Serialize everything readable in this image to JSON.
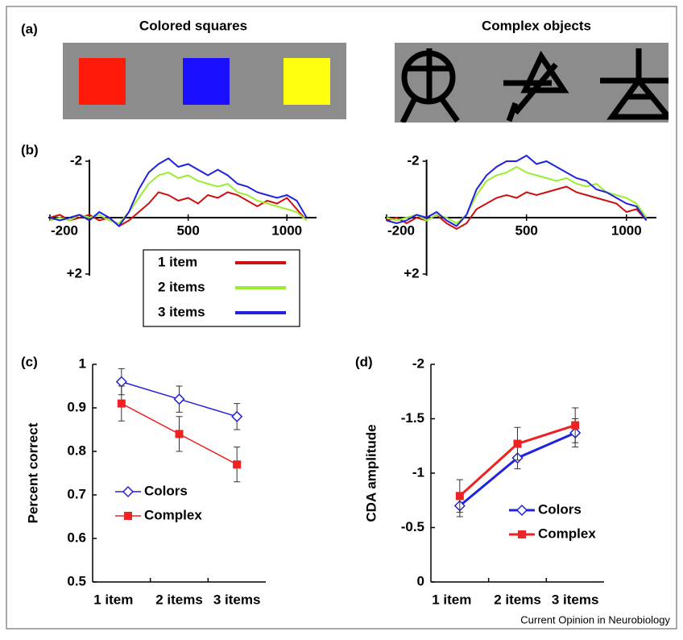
{
  "figure": {
    "panel_labels": [
      "(a)",
      "(b)",
      "(c)",
      "(d)"
    ],
    "stimulus_titles": [
      "Colored squares",
      "Complex objects"
    ],
    "credit": "Current Opinion in Neurobiology"
  },
  "chart_data": [
    {
      "type": "erp",
      "x": [
        -200,
        -150,
        -100,
        -50,
        0,
        50,
        100,
        150,
        200,
        250,
        300,
        350,
        400,
        450,
        500,
        550,
        600,
        650,
        700,
        750,
        800,
        850,
        900,
        950,
        1000,
        1050,
        1100
      ],
      "xlim": [
        -200,
        1150
      ],
      "ylim": [
        2,
        -2
      ],
      "xticks": [
        -200,
        500,
        1000
      ],
      "yticks": [
        -2,
        {
          "value": 2,
          "label": "+2"
        }
      ],
      "legend": "below",
      "series": [
        {
          "name": "1 item",
          "color": "#cc1111",
          "values": [
            0,
            -0.1,
            0.1,
            0,
            -0.1,
            0.1,
            0,
            0.3,
            0.1,
            -0.2,
            -0.5,
            -0.9,
            -0.8,
            -0.6,
            -0.7,
            -0.5,
            -0.8,
            -0.7,
            -0.9,
            -0.8,
            -0.6,
            -0.4,
            -0.6,
            -0.5,
            -0.7,
            -0.3,
            0.1
          ]
        },
        {
          "name": "2 items",
          "color": "#99ee33",
          "values": [
            0.1,
            0,
            0.1,
            -0.1,
            0,
            -0.1,
            0.1,
            0.2,
            -0.2,
            -0.7,
            -1.2,
            -1.5,
            -1.6,
            -1.4,
            -1.5,
            -1.3,
            -1.2,
            -1.1,
            -1.2,
            -0.9,
            -0.8,
            -0.6,
            -0.5,
            -0.4,
            -0.3,
            -0.2,
            0.1
          ]
        },
        {
          "name": "3 items",
          "color": "#2222dd",
          "values": [
            0,
            0.1,
            0,
            -0.1,
            0.1,
            -0.2,
            0,
            0.3,
            -0.2,
            -1.0,
            -1.6,
            -1.9,
            -2.1,
            -1.8,
            -1.9,
            -1.7,
            -1.5,
            -1.7,
            -1.5,
            -1.2,
            -1.1,
            -0.9,
            -0.8,
            -0.7,
            -0.8,
            -0.6,
            0
          ]
        }
      ]
    },
    {
      "type": "erp",
      "x": [
        -200,
        -150,
        -100,
        -50,
        0,
        50,
        100,
        150,
        200,
        250,
        300,
        350,
        400,
        450,
        500,
        550,
        600,
        650,
        700,
        750,
        800,
        850,
        900,
        950,
        1000,
        1050,
        1100
      ],
      "xlim": [
        -200,
        1150
      ],
      "ylim": [
        2,
        -2
      ],
      "xticks": [
        -200,
        500,
        1000
      ],
      "yticks": [
        -2,
        {
          "value": 2,
          "label": "+2"
        }
      ],
      "series": [
        {
          "color": "#cc1111",
          "values": [
            0.1,
            0,
            0.2,
            0,
            0.1,
            -0.1,
            0.2,
            0.4,
            0.2,
            -0.3,
            -0.5,
            -0.7,
            -0.8,
            -0.7,
            -0.9,
            -0.8,
            -0.9,
            -1.0,
            -1.1,
            -0.9,
            -0.8,
            -0.7,
            -0.6,
            -0.5,
            -0.2,
            -0.3,
            0.1
          ]
        },
        {
          "color": "#99ee33",
          "values": [
            0,
            0.1,
            0,
            -0.1,
            0.1,
            -0.1,
            0,
            0.2,
            -0.1,
            -0.8,
            -1.3,
            -1.5,
            -1.6,
            -1.8,
            -1.6,
            -1.5,
            -1.4,
            -1.3,
            -1.4,
            -1.2,
            -1.1,
            -1.2,
            -0.9,
            -0.8,
            -0.7,
            -0.5,
            0
          ]
        },
        {
          "color": "#2222dd",
          "values": [
            0.1,
            0.2,
            0.1,
            -0.1,
            0,
            -0.2,
            0.1,
            0.3,
            -0.1,
            -1.0,
            -1.5,
            -1.8,
            -2.0,
            -2.0,
            -2.2,
            -1.9,
            -2.0,
            -1.8,
            -1.6,
            -1.4,
            -1.3,
            -1.0,
            -0.9,
            -0.7,
            -0.5,
            -0.4,
            0.1
          ]
        }
      ]
    },
    {
      "type": "line",
      "categories": [
        "1 item",
        "2 items",
        "3 items"
      ],
      "ylabel": "Percent correct",
      "ylim": [
        0.5,
        1
      ],
      "yticks": [
        0.5,
        0.6,
        0.7,
        0.8,
        0.9,
        1
      ],
      "legend": "lower left",
      "series": [
        {
          "name": "Colors",
          "color": "#2222dd",
          "marker": "diamond",
          "values": [
            0.96,
            0.92,
            0.88
          ],
          "errors": [
            0.03,
            0.03,
            0.03
          ]
        },
        {
          "name": "Complex",
          "color": "#ee2222",
          "marker": "square",
          "values": [
            0.91,
            0.84,
            0.77
          ],
          "errors": [
            0.04,
            0.04,
            0.04
          ]
        }
      ]
    },
    {
      "type": "line",
      "categories": [
        "1 item",
        "2 items",
        "3 items"
      ],
      "ylabel": "CDA amplitude",
      "ylim": [
        0,
        -2
      ],
      "yticks": [
        0,
        -0.5,
        -1,
        -1.5,
        -2
      ],
      "legend": "lower right",
      "series": [
        {
          "name": "Colors",
          "color": "#2222dd",
          "marker": "diamond",
          "values": [
            -0.7,
            -1.14,
            -1.37
          ],
          "errors": [
            0.1,
            0.1,
            0.13
          ]
        },
        {
          "name": "Complex",
          "color": "#ee2222",
          "marker": "square",
          "values": [
            -0.79,
            -1.27,
            -1.44
          ],
          "errors": [
            0.15,
            0.15,
            0.16
          ]
        }
      ]
    }
  ]
}
